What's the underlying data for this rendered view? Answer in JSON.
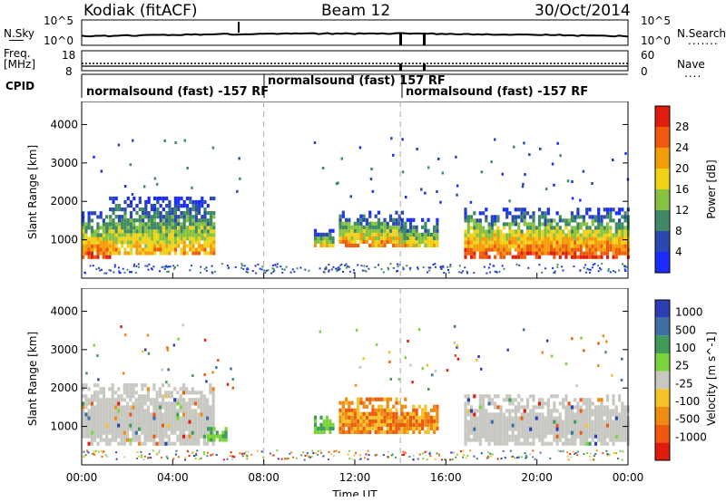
{
  "header": {
    "radar": "Kodiak (fitACF)",
    "beam": "Beam 12",
    "date": "30/Oct/2014"
  },
  "panels": {
    "noise": {
      "left_label": "N.Sky",
      "right_label": "N.Search",
      "left_ticks": [
        "10^5",
        "10^0"
      ],
      "right_ticks": [
        "10^5",
        "10^0"
      ]
    },
    "freq": {
      "left_label_1": "Freq.",
      "left_label_2": "[MHz]",
      "right_label": "Nave",
      "left_ticks": [
        "18",
        "8"
      ],
      "right_ticks": [
        "60",
        "0"
      ]
    },
    "cpid": {
      "label": "CPID",
      "segments": [
        "normalsound (fast) -157 RF",
        "normalsound (fast) 157 RF",
        "normalsound (fast) -157 RF"
      ]
    }
  },
  "legend_dots": {
    "nsearch": ".......",
    "nave": "...."
  },
  "colors": {
    "power": [
      "#1a2cff",
      "#2a49b0",
      "#3f8a64",
      "#86c23f",
      "#f1d21a",
      "#f59c0a",
      "#f05a0c",
      "#e01e0e"
    ],
    "velocity": [
      "#2d3db8",
      "#3f6fa3",
      "#3f9b58",
      "#7ad33b",
      "#c8c8c0",
      "#f5c22a",
      "#f08a12",
      "#ee5a0d",
      "#e01c0d"
    ],
    "ground_gray": "#c8c8c2"
  },
  "chart_data": [
    {
      "type": "heatmap",
      "name": "power",
      "ylabel": "Slant Range [km]",
      "xlabel": "Time UT",
      "x_ticks": [
        "00:00",
        "04:00",
        "08:00",
        "12:00",
        "16:00",
        "20:00",
        "00:00"
      ],
      "y_ticks": [
        "1000",
        "2000",
        "3000",
        "4000"
      ],
      "colorbar_label": "Power [dB]",
      "colorbar_ticks": [
        "4",
        "8",
        "12",
        "16",
        "20",
        "24",
        "28"
      ],
      "dashed_marks_hours": [
        8,
        14
      ],
      "echo_regions": [
        {
          "t0": 0.0,
          "t1": 1.2,
          "r0": 600,
          "r1": 1800,
          "peak": 0.9
        },
        {
          "t0": 1.2,
          "t1": 5.8,
          "r0": 700,
          "r1": 2200,
          "peak": 0.7
        },
        {
          "t0": 10.2,
          "t1": 11.0,
          "r0": 900,
          "r1": 1300,
          "peak": 0.6
        },
        {
          "t0": 11.3,
          "t1": 14.2,
          "r0": 900,
          "r1": 1800,
          "peak": 0.75
        },
        {
          "t0": 14.0,
          "t1": 15.6,
          "r0": 900,
          "r1": 1600,
          "peak": 0.6
        },
        {
          "t0": 16.8,
          "t1": 24.0,
          "r0": 600,
          "r1": 1900,
          "peak": 0.95
        }
      ]
    },
    {
      "type": "heatmap",
      "name": "velocity",
      "ylabel": "Slant Range [km]",
      "xlabel": "Time UT",
      "x_ticks": [
        "00:00",
        "04:00",
        "08:00",
        "12:00",
        "16:00",
        "20:00",
        "00:00"
      ],
      "y_ticks": [
        "1000",
        "2000",
        "3000",
        "4000"
      ],
      "colorbar_label": "Velocity [m s^-1]",
      "colorbar_ticks": [
        "1000",
        "500",
        "100",
        "25",
        "-25",
        "-100",
        "-500",
        "-1000"
      ],
      "dashed_marks_hours": [
        8,
        14
      ],
      "echo_regions": [
        {
          "t0": 0.0,
          "t1": 5.8,
          "r0": 600,
          "r1": 2200,
          "class": "ground"
        },
        {
          "t0": 5.5,
          "t1": 6.3,
          "r0": 700,
          "r1": 1000,
          "class": "positive"
        },
        {
          "t0": 10.2,
          "t1": 11.0,
          "r0": 900,
          "r1": 1300,
          "class": "positive"
        },
        {
          "t0": 11.3,
          "t1": 14.2,
          "r0": 900,
          "r1": 1800,
          "class": "negative"
        },
        {
          "t0": 14.0,
          "t1": 15.6,
          "r0": 900,
          "r1": 1600,
          "class": "negative"
        },
        {
          "t0": 16.8,
          "t1": 24.0,
          "r0": 600,
          "r1": 1900,
          "class": "ground"
        }
      ]
    }
  ]
}
